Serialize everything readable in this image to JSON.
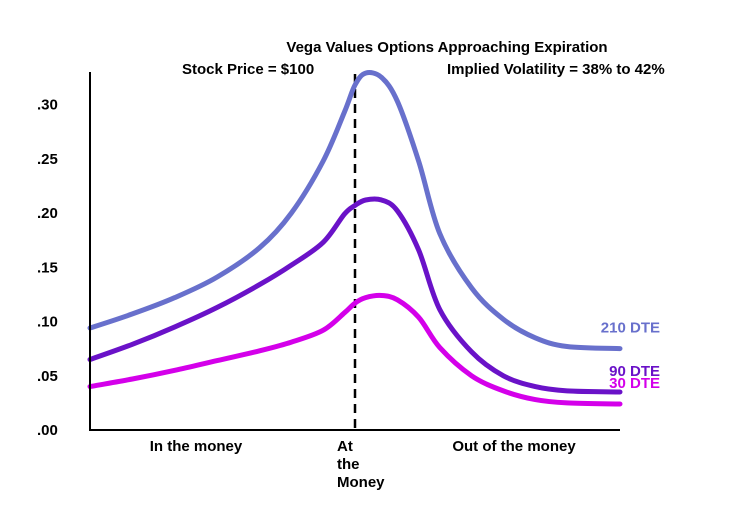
{
  "chart_data": {
    "type": "line",
    "title": "Vega Values Options Approaching Expiration",
    "subtitle_left": "Stock Price = $100",
    "subtitle_right": "Implied Volatility = 38% to 42%",
    "ylim": [
      0,
      0.33
    ],
    "y_ticks": [
      {
        "value": 0.0,
        "label": ".00"
      },
      {
        "value": 0.05,
        "label": ".05"
      },
      {
        "value": 0.1,
        "label": ".10"
      },
      {
        "value": 0.15,
        "label": ".15"
      },
      {
        "value": 0.2,
        "label": ".20"
      },
      {
        "value": 0.25,
        "label": ".25"
      },
      {
        "value": 0.3,
        "label": ".30"
      }
    ],
    "x_categories": [
      {
        "position": 0.2,
        "lines": [
          "In the money"
        ]
      },
      {
        "position": 0.5,
        "lines": [
          "At",
          "the",
          "Money"
        ]
      },
      {
        "position": 0.8,
        "lines": [
          "Out of the money"
        ]
      }
    ],
    "atm_position": 0.5,
    "series": [
      {
        "name": "210 DTE",
        "color": "#6870cc",
        "x": [
          0.0,
          0.08,
          0.16,
          0.24,
          0.32,
          0.38,
          0.44,
          0.48,
          0.5,
          0.52,
          0.55,
          0.58,
          0.62,
          0.66,
          0.72,
          0.78,
          0.84,
          0.9,
          1.0
        ],
        "y": [
          0.094,
          0.107,
          0.122,
          0.141,
          0.168,
          0.2,
          0.248,
          0.293,
          0.318,
          0.329,
          0.325,
          0.303,
          0.248,
          0.181,
          0.131,
          0.102,
          0.085,
          0.077,
          0.075
        ]
      },
      {
        "name": "90 DTE",
        "color": "#6a12c8",
        "x": [
          0.0,
          0.08,
          0.16,
          0.24,
          0.32,
          0.38,
          0.44,
          0.48,
          0.5,
          0.52,
          0.55,
          0.58,
          0.62,
          0.66,
          0.72,
          0.78,
          0.84,
          0.9,
          1.0
        ],
        "y": [
          0.065,
          0.079,
          0.095,
          0.113,
          0.134,
          0.152,
          0.173,
          0.199,
          0.207,
          0.212,
          0.212,
          0.202,
          0.166,
          0.111,
          0.072,
          0.05,
          0.04,
          0.036,
          0.035
        ]
      },
      {
        "name": "30 DTE",
        "color": "#d400ea",
        "x": [
          0.0,
          0.08,
          0.16,
          0.24,
          0.32,
          0.38,
          0.44,
          0.48,
          0.5,
          0.52,
          0.55,
          0.58,
          0.62,
          0.66,
          0.72,
          0.78,
          0.84,
          0.9,
          1.0
        ],
        "y": [
          0.04,
          0.047,
          0.055,
          0.064,
          0.073,
          0.081,
          0.092,
          0.108,
          0.117,
          0.122,
          0.124,
          0.12,
          0.104,
          0.076,
          0.05,
          0.036,
          0.028,
          0.025,
          0.024
        ]
      }
    ]
  }
}
